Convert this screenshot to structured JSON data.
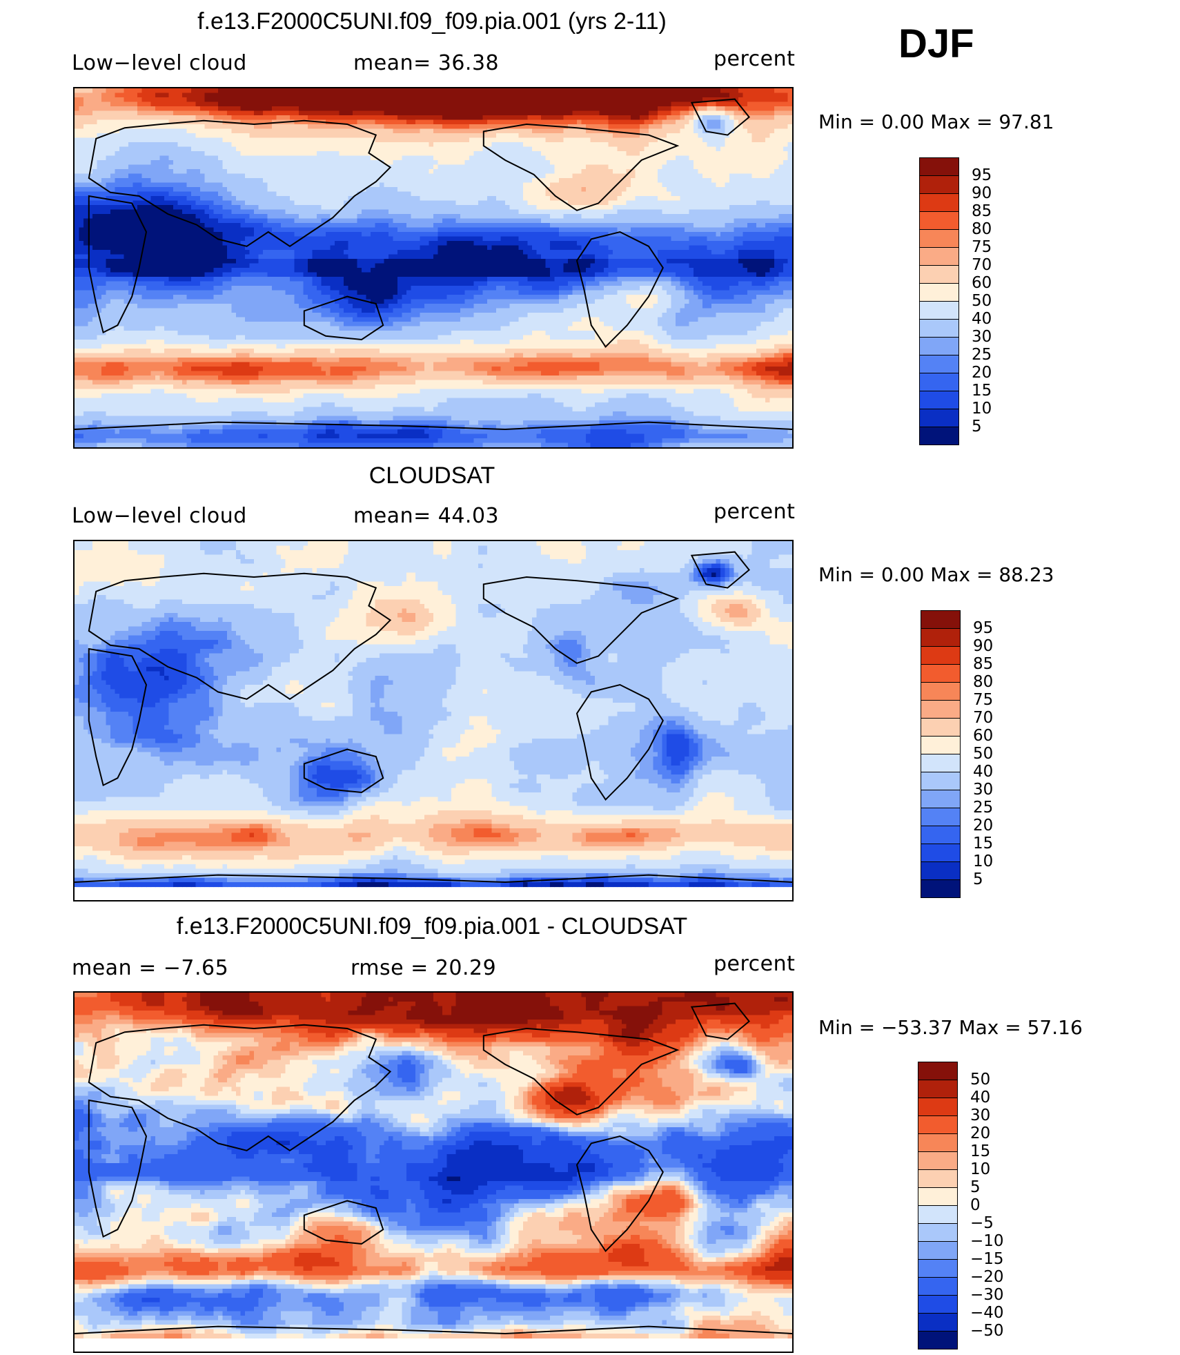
{
  "season": "DJF",
  "colors": {
    "seq": [
      "#00137a",
      "#0a2fc4",
      "#1f4ce6",
      "#3565f0",
      "#5482f5",
      "#80a6f7",
      "#aac8fa",
      "#d2e4fb",
      "#fff0d9",
      "#fcd0b2",
      "#faab86",
      "#f78658",
      "#f25c2e",
      "#dd3a14",
      "#b0210b",
      "#85110a"
    ],
    "diff": [
      "#00137a",
      "#0a2fc4",
      "#1f4ce6",
      "#3565f0",
      "#5482f5",
      "#80a6f7",
      "#aac8fa",
      "#d2e4fb",
      "#fff0d9",
      "#fcd0b2",
      "#faab86",
      "#f78658",
      "#f25c2e",
      "#dd3a14",
      "#b0210b",
      "#85110a"
    ]
  },
  "panels": [
    {
      "title": "f.e13.F2000C5UNI.f09_f09.pia.001 (yrs 2-11)",
      "left_label": "Low−level cloud",
      "mid_label": "mean=   36.38",
      "right_label": "percent",
      "minmax": "Min  =     0.00  Max  =    97.81",
      "levels": [
        "95",
        "90",
        "85",
        "80",
        "75",
        "70",
        "60",
        "50",
        "40",
        "30",
        "25",
        "20",
        "15",
        "10",
        "5"
      ],
      "field": "model"
    },
    {
      "title": "CLOUDSAT",
      "left_label": "Low−level cloud",
      "mid_label": "mean=   44.03",
      "right_label": "percent",
      "minmax": "Min  =     0.00  Max  =    88.23",
      "levels": [
        "95",
        "90",
        "85",
        "80",
        "75",
        "70",
        "60",
        "50",
        "40",
        "30",
        "25",
        "20",
        "15",
        "10",
        "5"
      ],
      "field": "obs"
    },
    {
      "title": "f.e13.F2000C5UNI.f09_f09.pia.001 - CLOUDSAT",
      "left_label": "mean  =    −7.65",
      "mid_label": "rmse  =    20.29",
      "right_label": "percent",
      "minmax": "Min  = −53.37  Max  =    57.16",
      "levels": [
        "50",
        "40",
        "30",
        "20",
        "15",
        "10",
        "5",
        "0",
        "−5",
        "−10",
        "−15",
        "−20",
        "−30",
        "−40",
        "−50"
      ],
      "field": "diff"
    }
  ]
}
